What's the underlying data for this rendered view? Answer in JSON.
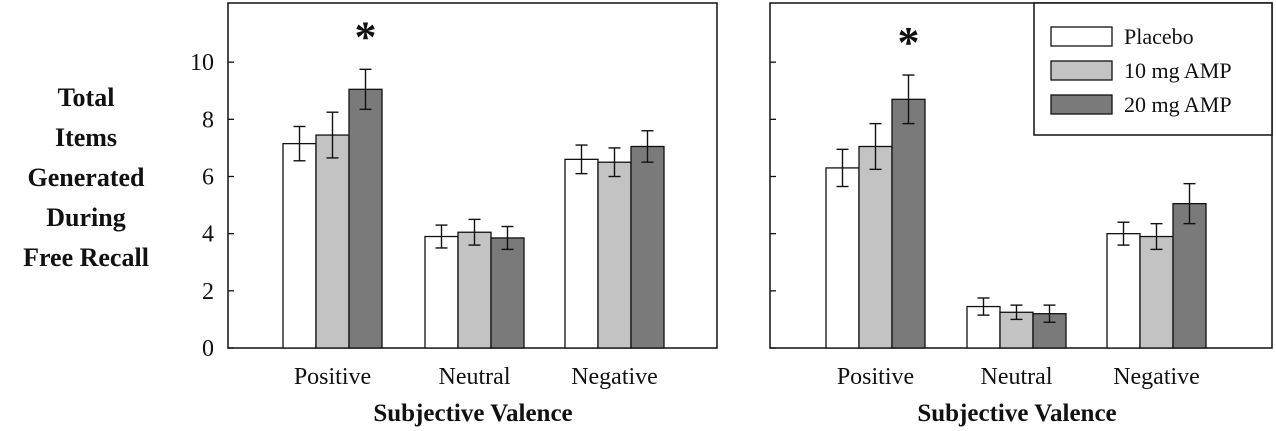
{
  "colors": {
    "Placebo": "#ffffff",
    "10 mg AMP": "#c3c3c3",
    "20 mg AMP": "#7a7a7a",
    "axis": "#111111"
  },
  "ylabel_lines": [
    "Total",
    "Items",
    "Generated",
    "During",
    "Free Recall"
  ],
  "chart_data": [
    {
      "type": "bar",
      "categories": [
        "Positive",
        "Neutral",
        "Negative"
      ],
      "xlabel": "Subjective Valence",
      "ylabel": "Total Items Generated During Free Recall",
      "ylim": [
        0,
        12
      ],
      "yticks": [
        0,
        2,
        4,
        6,
        8,
        10
      ],
      "series": [
        {
          "name": "Placebo",
          "values": [
            7.15,
            3.9,
            6.6
          ],
          "errors": [
            0.6,
            0.4,
            0.5
          ]
        },
        {
          "name": "10 mg AMP",
          "values": [
            7.45,
            4.05,
            6.5
          ],
          "errors": [
            0.8,
            0.45,
            0.5
          ]
        },
        {
          "name": "20 mg AMP",
          "values": [
            9.05,
            3.85,
            7.05
          ],
          "errors": [
            0.7,
            0.4,
            0.55
          ]
        }
      ],
      "annotations": [
        {
          "category": "Positive",
          "text": "*"
        }
      ],
      "legend": null
    },
    {
      "type": "bar",
      "categories": [
        "Positive",
        "Neutral",
        "Negative"
      ],
      "xlabel": "Subjective Valence",
      "ylabel": "",
      "ylim": [
        0,
        12
      ],
      "yticks": [
        0,
        2,
        4,
        6,
        8,
        10
      ],
      "series": [
        {
          "name": "Placebo",
          "values": [
            6.3,
            1.45,
            4.0
          ],
          "errors": [
            0.65,
            0.3,
            0.4
          ]
        },
        {
          "name": "10 mg AMP",
          "values": [
            7.05,
            1.25,
            3.9
          ],
          "errors": [
            0.8,
            0.25,
            0.45
          ]
        },
        {
          "name": "20 mg AMP",
          "values": [
            8.7,
            1.2,
            5.05
          ],
          "errors": [
            0.85,
            0.3,
            0.7
          ]
        }
      ],
      "annotations": [
        {
          "category": "Positive",
          "text": "*"
        }
      ],
      "legend": "top-right"
    }
  ]
}
